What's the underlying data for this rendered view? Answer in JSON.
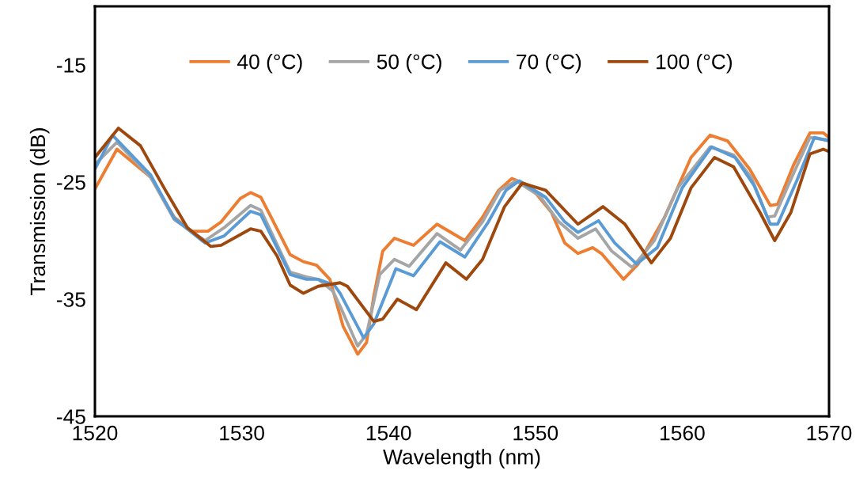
{
  "chart_data": {
    "type": "line",
    "xlabel": "Wavelength (nm)",
    "ylabel": "Transmission (dB)",
    "xlim": [
      1520,
      1570
    ],
    "xticks": [
      1520,
      1530,
      1540,
      1550,
      1560,
      1570
    ],
    "ylim": [
      -45,
      -10
    ],
    "yticks": [
      -45,
      -35,
      -25,
      -15
    ],
    "grid": false,
    "legend": "top",
    "marker": "none",
    "line_style": "solid",
    "series": [
      {
        "name": "40 (°C)",
        "color": "#ed7d31",
        "x": [
          1520,
          1521.5,
          1523.8,
          1525.4,
          1526.6,
          1527.7,
          1528.6,
          1529.9,
          1530.6,
          1531.3,
          1532.0,
          1533.3,
          1534.2,
          1535.1,
          1536.0,
          1536.9,
          1537.9,
          1538.5,
          1539.0,
          1539.6,
          1540.4,
          1541.7,
          1543.3,
          1545.2,
          1546.4,
          1547.5,
          1548.4,
          1549.6,
          1551.1,
          1552.0,
          1552.9,
          1553.9,
          1554.5,
          1556.0,
          1557.0,
          1558.8,
          1560.6,
          1561.9,
          1563.1,
          1564.6,
          1566.0,
          1566.5,
          1567.6,
          1568.7,
          1569.6,
          1570
        ],
        "values": [
          -25.6,
          -22.2,
          -24.6,
          -28.0,
          -29.2,
          -29.2,
          -28.4,
          -26.4,
          -25.9,
          -26.3,
          -28.0,
          -31.2,
          -31.8,
          -32.1,
          -33.3,
          -37.3,
          -39.7,
          -38.7,
          -34.7,
          -30.9,
          -29.8,
          -30.4,
          -28.6,
          -30.0,
          -28.0,
          -25.7,
          -24.7,
          -25.3,
          -27.6,
          -30.2,
          -31.1,
          -30.6,
          -31.1,
          -33.3,
          -32.0,
          -28.0,
          -22.9,
          -21.0,
          -21.5,
          -23.9,
          -27.0,
          -26.9,
          -23.5,
          -20.8,
          -20.8,
          -21.2
        ]
      },
      {
        "name": "50 (°C)",
        "color": "#a5a5a5",
        "x": [
          1520,
          1521.5,
          1523.8,
          1525.4,
          1527.5,
          1528.8,
          1530.6,
          1531.3,
          1533.3,
          1534.4,
          1535.2,
          1536.2,
          1536.7,
          1537.9,
          1538.5,
          1539.4,
          1540.4,
          1541.4,
          1543.3,
          1544.9,
          1546.4,
          1547.6,
          1548.7,
          1550.3,
          1551.6,
          1552.9,
          1554.1,
          1555.2,
          1556.6,
          1558.1,
          1559.7,
          1561.9,
          1563.5,
          1564.7,
          1565.8,
          1566.3,
          1567.6,
          1568.7,
          1569.9
        ],
        "values": [
          -23.5,
          -21.6,
          -24.6,
          -28.2,
          -30.0,
          -28.9,
          -27.0,
          -27.4,
          -32.7,
          -33.1,
          -33.3,
          -34.3,
          -35.6,
          -39.0,
          -38.0,
          -32.9,
          -31.6,
          -32.2,
          -29.4,
          -30.8,
          -28.4,
          -25.7,
          -24.9,
          -26.2,
          -28.4,
          -29.8,
          -29.0,
          -30.9,
          -32.3,
          -30.0,
          -25.5,
          -22.0,
          -22.7,
          -24.6,
          -28.0,
          -27.9,
          -24.2,
          -21.2,
          -21.4
        ]
      },
      {
        "name": "70 (°C)",
        "color": "#5b9bd5",
        "x": [
          1520,
          1521.2,
          1523.8,
          1525.4,
          1527.5,
          1528.8,
          1530.6,
          1531.3,
          1533.3,
          1534.4,
          1535.2,
          1536.3,
          1536.7,
          1538.3,
          1539.0,
          1540.5,
          1541.7,
          1543.5,
          1545.2,
          1546.8,
          1548.0,
          1548.9,
          1550.7,
          1552.0,
          1552.9,
          1554.3,
          1555.4,
          1556.9,
          1558.3,
          1560.0,
          1562.0,
          1563.6,
          1564.9,
          1566.0,
          1566.5,
          1567.8,
          1569.0,
          1570
        ],
        "values": [
          -23.9,
          -21.0,
          -24.4,
          -28.1,
          -30.2,
          -29.6,
          -27.5,
          -27.8,
          -32.9,
          -33.3,
          -33.3,
          -33.8,
          -34.5,
          -38.3,
          -37.1,
          -32.4,
          -33.0,
          -30.1,
          -31.4,
          -28.4,
          -25.7,
          -24.9,
          -26.3,
          -28.4,
          -29.3,
          -28.3,
          -30.2,
          -32.0,
          -30.6,
          -25.5,
          -22.0,
          -22.9,
          -25.3,
          -28.6,
          -28.6,
          -24.9,
          -21.2,
          -21.5
        ]
      },
      {
        "name": "100 (°C)",
        "color": "#9e480e",
        "x": [
          1520,
          1521.6,
          1523.1,
          1524.8,
          1526.3,
          1527.9,
          1528.6,
          1530.6,
          1531.3,
          1532.4,
          1533.3,
          1534.2,
          1535.2,
          1536.7,
          1537.2,
          1539.0,
          1539.6,
          1540.6,
          1541.9,
          1543.9,
          1545.3,
          1546.4,
          1547.9,
          1549.1,
          1550.7,
          1552.9,
          1554.6,
          1556.1,
          1557.9,
          1559.2,
          1560.6,
          1562.2,
          1563.5,
          1565.3,
          1566.3,
          1567.4,
          1568.7,
          1569.6,
          1570
        ],
        "values": [
          -22.9,
          -20.4,
          -21.9,
          -25.7,
          -28.9,
          -30.5,
          -30.4,
          -29.0,
          -29.2,
          -31.3,
          -33.8,
          -34.5,
          -33.9,
          -33.6,
          -33.9,
          -36.9,
          -36.7,
          -35.0,
          -35.9,
          -31.9,
          -33.3,
          -31.6,
          -27.1,
          -25.1,
          -25.7,
          -28.6,
          -27.1,
          -28.6,
          -31.9,
          -29.8,
          -25.5,
          -22.9,
          -23.7,
          -27.6,
          -30.0,
          -27.6,
          -22.6,
          -22.2,
          -22.4
        ]
      }
    ]
  }
}
